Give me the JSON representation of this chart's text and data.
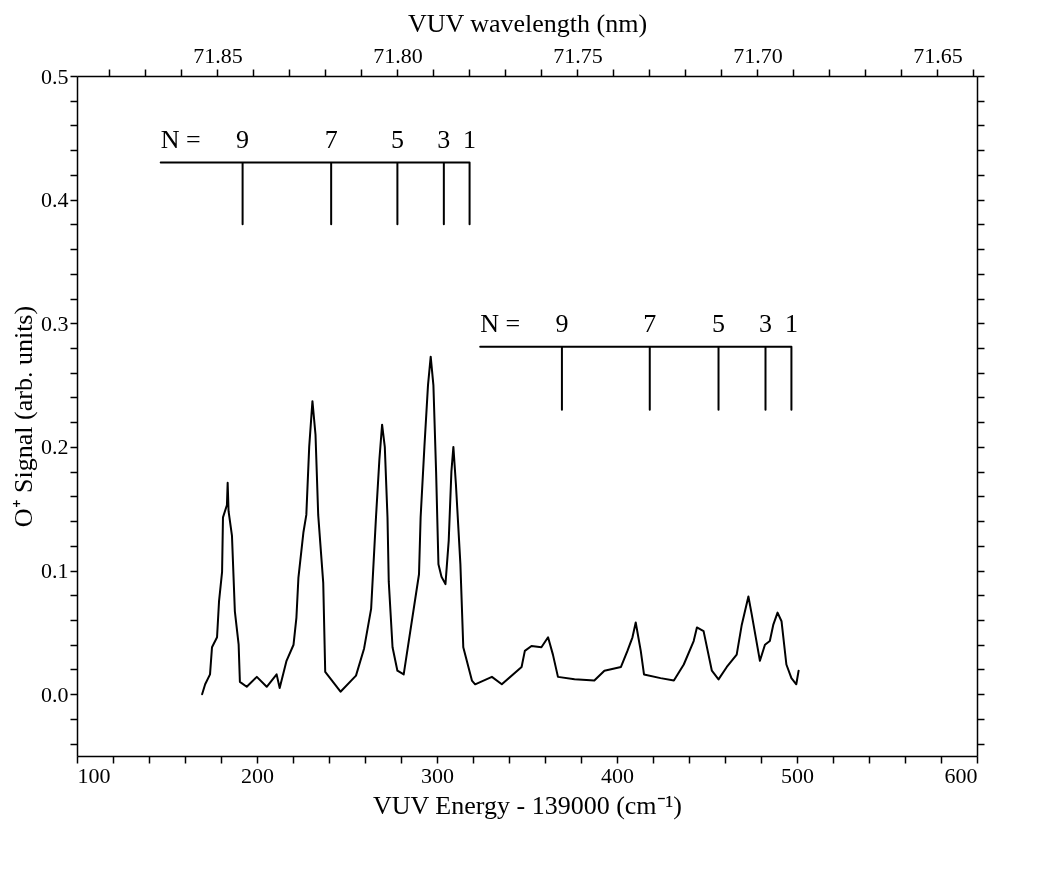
{
  "chart_data": {
    "type": "line",
    "xlabel": "VUV Energy - 139000 (cm⁻¹)",
    "ylabel": "O⁺ Signal (arb. units)",
    "x2label": "VUV wavelength (nm)",
    "xlim": [
      100,
      600
    ],
    "xticks": [
      100,
      {
        "value": 120,
        "label": null
      },
      {
        "value": 140,
        "label": null
      },
      {
        "value": 160,
        "label": null
      },
      {
        "value": 180,
        "label": null
      },
      200,
      {
        "value": 220,
        "label": null
      },
      {
        "value": 240,
        "label": null
      },
      {
        "value": 260,
        "label": null
      },
      {
        "value": 280,
        "label": null
      },
      300,
      {
        "value": 320,
        "label": null
      },
      {
        "value": 340,
        "label": null
      },
      {
        "value": 360,
        "label": null
      },
      {
        "value": 380,
        "label": null
      },
      400,
      {
        "value": 420,
        "label": null
      },
      {
        "value": 440,
        "label": null
      },
      {
        "value": 460,
        "label": null
      },
      {
        "value": 480,
        "label": null
      },
      500,
      {
        "value": 520,
        "label": null
      },
      {
        "value": 540,
        "label": null
      },
      {
        "value": 560,
        "label": null
      },
      {
        "value": 580,
        "label": null
      },
      600
    ],
    "ylim": [
      -0.05,
      0.5
    ],
    "yticks": [
      {
        "value": -0.04,
        "label": null
      },
      {
        "value": -0.02,
        "label": null
      },
      {
        "value": 0,
        "label": "0.0"
      },
      {
        "value": 0.02,
        "label": null
      },
      {
        "value": 0.04,
        "label": null
      },
      {
        "value": 0.06,
        "label": null
      },
      {
        "value": 0.08,
        "label": null
      },
      {
        "value": 0.1,
        "label": "0.1"
      },
      {
        "value": 0.12,
        "label": null
      },
      {
        "value": 0.14,
        "label": null
      },
      {
        "value": 0.16,
        "label": null
      },
      {
        "value": 0.18,
        "label": null
      },
      {
        "value": 0.2,
        "label": "0.2"
      },
      {
        "value": 0.22,
        "label": null
      },
      {
        "value": 0.24,
        "label": null
      },
      {
        "value": 0.26,
        "label": null
      },
      {
        "value": 0.28,
        "label": null
      },
      {
        "value": 0.3,
        "label": "0.3"
      },
      {
        "value": 0.32,
        "label": null
      },
      {
        "value": 0.34,
        "label": null
      },
      {
        "value": 0.36,
        "label": null
      },
      {
        "value": 0.38,
        "label": null
      },
      {
        "value": 0.4,
        "label": "0.4"
      },
      {
        "value": 0.42,
        "label": null
      },
      {
        "value": 0.44,
        "label": null
      },
      {
        "value": 0.46,
        "label": null
      },
      {
        "value": 0.48,
        "label": null
      },
      {
        "value": 0.5,
        "label": "0.5"
      }
    ],
    "x2lim": [
      71.889,
      71.639
    ],
    "x2ticks": [
      {
        "value": 71.88,
        "label": null
      },
      {
        "value": 71.87,
        "label": null
      },
      {
        "value": 71.86,
        "label": null
      },
      71.85,
      {
        "value": 71.84,
        "label": null
      },
      {
        "value": 71.83,
        "label": null
      },
      {
        "value": 71.82,
        "label": null
      },
      {
        "value": 71.81,
        "label": null
      },
      {
        "value": 71.8,
        "label": "71.80"
      },
      {
        "value": 71.79,
        "label": null
      },
      {
        "value": 71.78,
        "label": null
      },
      {
        "value": 71.77,
        "label": null
      },
      {
        "value": 71.76,
        "label": null
      },
      71.75,
      {
        "value": 71.74,
        "label": null
      },
      {
        "value": 71.73,
        "label": null
      },
      {
        "value": 71.72,
        "label": null
      },
      {
        "value": 71.71,
        "label": null
      },
      {
        "value": 71.7,
        "label": "71.70"
      },
      {
        "value": 71.69,
        "label": null
      },
      {
        "value": 71.68,
        "label": null
      },
      {
        "value": 71.67,
        "label": null
      },
      {
        "value": 71.66,
        "label": null
      },
      71.65,
      {
        "value": 71.64,
        "label": null
      }
    ],
    "grid": false,
    "series": [
      {
        "color": "#000000",
        "x": [
          169.5,
          171.2,
          173.9,
          175,
          177.8,
          178.9,
          180.6,
          181.1,
          183.3,
          183.7,
          184.2,
          186.1,
          187.7,
          189.8,
          190.5,
          194.3,
          199.9,
          205.4,
          210.9,
          212.6,
          216.4,
          220.3,
          221.9,
          223,
          225.8,
          227.4,
          229,
          230.8,
          232.5,
          234,
          236.8,
          237.9,
          246.4,
          255,
          259.5,
          263.4,
          266.1,
          268,
          269.5,
          271,
          272.5,
          273.2,
          275.3,
          278,
          281.5,
          290,
          290.9,
          293,
          295,
          296.5,
          298,
          299.5,
          300.8,
          302.5,
          304.7,
          306.5,
          308,
          309.1,
          310.5,
          313,
          314.6,
          319.4,
          321.2,
          330.5,
          336,
          347,
          348.8,
          352.5,
          358,
          361.7,
          364.4,
          367.2,
          376.4,
          387.4,
          393,
          402.2,
          405.8,
          408.6,
          410.4,
          413.2,
          415,
          424.2,
          431.6,
          437.1,
          442.6,
          444.4,
          448.1,
          452.7,
          456.4,
          461,
          466.5,
          469.3,
          473,
          474.8,
          479.4,
          482.2,
          484.9,
          486.8,
          489.2,
          491.4,
          494.1,
          496.9,
          499.6,
          500.9
        ],
        "values": [
          0,
          0.008,
          0.016,
          0.038,
          0.046,
          0.075,
          0.099,
          0.143,
          0.153,
          0.171,
          0.148,
          0.128,
          0.067,
          0.04,
          0.01,
          0.006,
          0.014,
          0.006,
          0.016,
          0.005,
          0.027,
          0.04,
          0.062,
          0.094,
          0.131,
          0.145,
          0.2,
          0.237,
          0.21,
          0.145,
          0.09,
          0.018,
          0.002,
          0.015,
          0.037,
          0.069,
          0.143,
          0.19,
          0.218,
          0.2,
          0.143,
          0.091,
          0.038,
          0.019,
          0.016,
          0.097,
          0.143,
          0.2,
          0.25,
          0.273,
          0.25,
          0.18,
          0.105,
          0.095,
          0.089,
          0.124,
          0.18,
          0.2,
          0.17,
          0.105,
          0.038,
          0.011,
          0.008,
          0.014,
          0.008,
          0.022,
          0.035,
          0.039,
          0.038,
          0.046,
          0.032,
          0.014,
          0.012,
          0.011,
          0.019,
          0.022,
          0.035,
          0.046,
          0.058,
          0.035,
          0.016,
          0.013,
          0.011,
          0.024,
          0.043,
          0.054,
          0.051,
          0.019,
          0.012,
          0.022,
          0.032,
          0.056,
          0.079,
          0.065,
          0.027,
          0.04,
          0.043,
          0.056,
          0.066,
          0.059,
          0.024,
          0.013,
          0.008,
          0.019
        ]
      },
      {
        "color": "#000000",
        "x": [
          146.5,
          192,
          192,
          192,
          241.2,
          241.2,
          241.2,
          278,
          278,
          278,
          303.8,
          303.8,
          303.8,
          318.1,
          318.1
        ],
        "values": [
          0.43,
          0.43,
          0.38,
          0.43,
          0.43,
          0.38,
          0.43,
          0.43,
          0.38,
          0.43,
          0.43,
          0.38,
          0.43,
          0.43,
          0.38
        ]
      },
      {
        "color": "#000000",
        "x": [
          324,
          369.4,
          369.4,
          369.4,
          418.2,
          418.2,
          418.2,
          456.4,
          456.4,
          456.4,
          482.5,
          482.5,
          482.5,
          496.9,
          496.9
        ],
        "values": [
          0.281,
          0.281,
          0.23,
          0.281,
          0.281,
          0.23,
          0.281,
          0.281,
          0.23,
          0.281,
          0.281,
          0.23,
          0.281,
          0.281,
          0.23
        ]
      }
    ],
    "annotations": [
      {
        "text": "N =",
        "x": 146.5,
        "y": 0.43
      },
      {
        "text": "9",
        "x": 192,
        "y": 0.43
      },
      {
        "text": "7",
        "x": 241.2,
        "y": 0.43
      },
      {
        "text": "5",
        "x": 278,
        "y": 0.43
      },
      {
        "text": "3",
        "x": 303.8,
        "y": 0.43
      },
      {
        "text": "1",
        "x": 318.1,
        "y": 0.43
      },
      {
        "text": "N =",
        "x": 324,
        "y": 0.281
      },
      {
        "text": "9",
        "x": 369.4,
        "y": 0.281
      },
      {
        "text": "7",
        "x": 418.2,
        "y": 0.281
      },
      {
        "text": "5",
        "x": 456.4,
        "y": 0.281
      },
      {
        "text": "3",
        "x": 482.5,
        "y": 0.281
      },
      {
        "text": "1",
        "x": 496.9,
        "y": 0.281
      }
    ]
  }
}
